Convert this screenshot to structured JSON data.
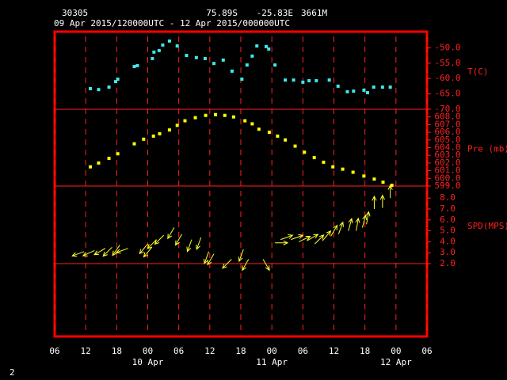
{
  "header": {
    "station": "30305",
    "lat": "75.89S",
    "lon": "-25.83E",
    "elev": "3661M",
    "period": "09 Apr 2015/120000UTC - 12 Apr 2015/000000UTC",
    "page": "2"
  },
  "chart_data": [
    {
      "type": "scatter",
      "axis_label": "T(C)",
      "color": "#40e8e8",
      "x": [
        12.9,
        14.5,
        16.5,
        17.8,
        18.2,
        21.4,
        22.0,
        24.9,
        25.2,
        26.2,
        26.9,
        28.2,
        29.7,
        31.5,
        33.4,
        35.1,
        36.8,
        38.6,
        40.3,
        42.2,
        43.2,
        44.2,
        45.1,
        46.9,
        47.4,
        48.6,
        50.6,
        52.2,
        54.0,
        55.2,
        56.6,
        59.1,
        60.8,
        62.6,
        63.8,
        65.8,
        66.5,
        67.7,
        69.4,
        70.9
      ],
      "values": [
        -63.3,
        -63.6,
        -62.8,
        -61.0,
        -60.2,
        -56.1,
        -55.8,
        -53.5,
        -51.4,
        -50.9,
        -49.1,
        -47.8,
        -49.4,
        -52.5,
        -53.2,
        -53.5,
        -55.1,
        -54.0,
        -57.6,
        -60.2,
        -55.6,
        -52.7,
        -49.4,
        -49.6,
        -50.4,
        -55.6,
        -60.5,
        -60.5,
        -61.2,
        -60.7,
        -60.7,
        -60.5,
        -62.5,
        -64.3,
        -64.1,
        -63.8,
        -64.6,
        -62.8,
        -62.8,
        -62.8
      ],
      "ylim": [
        -70,
        -44.75
      ],
      "yticks": [
        {
          "value": -50,
          "label": "-50.0"
        },
        {
          "value": -55,
          "label": "-55.0"
        },
        {
          "value": -60,
          "label": "-60.0"
        },
        {
          "value": -65,
          "label": "-65.0"
        },
        {
          "value": -70,
          "label": "-70.0"
        }
      ]
    },
    {
      "type": "scatter",
      "axis_label": "Pre (mb)",
      "color": "#ffff00",
      "x": [
        12.9,
        14.5,
        16.5,
        18.2,
        21.4,
        23.2,
        25.1,
        26.3,
        28.2,
        29.7,
        31.2,
        33.2,
        35.2,
        37.1,
        38.9,
        40.6,
        42.8,
        44.2,
        45.5,
        47.5,
        49.1,
        50.6,
        52.5,
        54.3,
        56.2,
        58.0,
        59.8,
        61.7,
        63.7,
        65.8,
        67.8,
        69.5,
        71.2
      ],
      "values": [
        601.5,
        602.0,
        602.6,
        603.2,
        604.5,
        605.1,
        605.5,
        605.8,
        606.3,
        606.9,
        607.5,
        607.9,
        608.2,
        608.3,
        608.2,
        608.0,
        607.5,
        607.1,
        606.4,
        606.0,
        605.5,
        605.0,
        604.2,
        603.4,
        602.7,
        602.1,
        601.5,
        601.2,
        600.8,
        600.3,
        599.9,
        599.5,
        599.1
      ],
      "ylim": [
        599,
        609
      ],
      "yticks": [
        {
          "value": 608,
          "label": "608.0"
        },
        {
          "value": 607,
          "label": "607.0"
        },
        {
          "value": 606,
          "label": "606.0"
        },
        {
          "value": 605,
          "label": "605.0"
        },
        {
          "value": 604,
          "label": "604.0"
        },
        {
          "value": 603,
          "label": "603.0"
        },
        {
          "value": 602,
          "label": "602.0"
        },
        {
          "value": 601,
          "label": "601.0"
        },
        {
          "value": 600,
          "label": "600.0"
        },
        {
          "value": 599,
          "label": "599.0"
        }
      ]
    },
    {
      "type": "vector",
      "axis_label": "SPD(MPS)",
      "color": "#ffff30",
      "x": [
        11.7,
        13.7,
        15.8,
        17.1,
        18.6,
        20.2,
        24.0,
        24.8,
        25.7,
        27.1,
        29.1,
        30.6,
        32.5,
        34.3,
        35.8,
        36.8,
        40.2,
        42.5,
        43.5,
        46.3,
        48.6,
        49.7,
        51.7,
        53.2,
        54.8,
        56.3,
        57.8,
        59.4,
        60.9,
        62.8,
        64.3,
        65.5,
        66.3,
        67.8,
        69.4,
        70.9
      ],
      "values": [
        3.1,
        3.2,
        3.4,
        3.5,
        3.7,
        3.4,
        3.8,
        3.5,
        4.2,
        4.6,
        5.3,
        4.7,
        4.2,
        4.4,
        3.1,
        2.9,
        2.4,
        3.3,
        2.4,
        2.4,
        3.9,
        4.2,
        4.2,
        4.0,
        4.1,
        3.8,
        4.1,
        4.5,
        4.7,
        5.0,
        5.0,
        5.3,
        5.6,
        7.0,
        7.1,
        8.0
      ],
      "directions": [
        250,
        245,
        240,
        225,
        215,
        250,
        220,
        220,
        225,
        225,
        210,
        210,
        200,
        200,
        200,
        210,
        225,
        200,
        210,
        150,
        90,
        70,
        70,
        65,
        60,
        45,
        40,
        30,
        20,
        15,
        10,
        15,
        10,
        0,
        0,
        0
      ],
      "ylim": [
        2,
        9.1
      ],
      "yticks": [
        {
          "value": 8,
          "label": "8.0"
        },
        {
          "value": 7,
          "label": "7.0"
        },
        {
          "value": 6,
          "label": "6.0"
        },
        {
          "value": 5,
          "label": "5.0"
        },
        {
          "value": 4,
          "label": "4.0"
        },
        {
          "value": 3,
          "label": "3.0"
        },
        {
          "value": 2,
          "label": "2.0"
        }
      ],
      "xlim": [
        6,
        78
      ],
      "xticks": [
        {
          "value": 6,
          "label": "06"
        },
        {
          "value": 12,
          "label": "12"
        },
        {
          "value": 18,
          "label": "18"
        },
        {
          "value": 24,
          "label": "00"
        },
        {
          "value": 30,
          "label": "06"
        },
        {
          "value": 36,
          "label": "12"
        },
        {
          "value": 42,
          "label": "18"
        },
        {
          "value": 48,
          "label": "00"
        },
        {
          "value": 54,
          "label": "06"
        },
        {
          "value": 60,
          "label": "12"
        },
        {
          "value": 66,
          "label": "18"
        },
        {
          "value": 72,
          "label": "00"
        },
        {
          "value": 78,
          "label": "06"
        }
      ],
      "date_labels": [
        {
          "value": 24,
          "label": "10 Apr"
        },
        {
          "value": 48,
          "label": "11 Apr"
        },
        {
          "value": 72,
          "label": "12 Apr"
        }
      ]
    }
  ]
}
